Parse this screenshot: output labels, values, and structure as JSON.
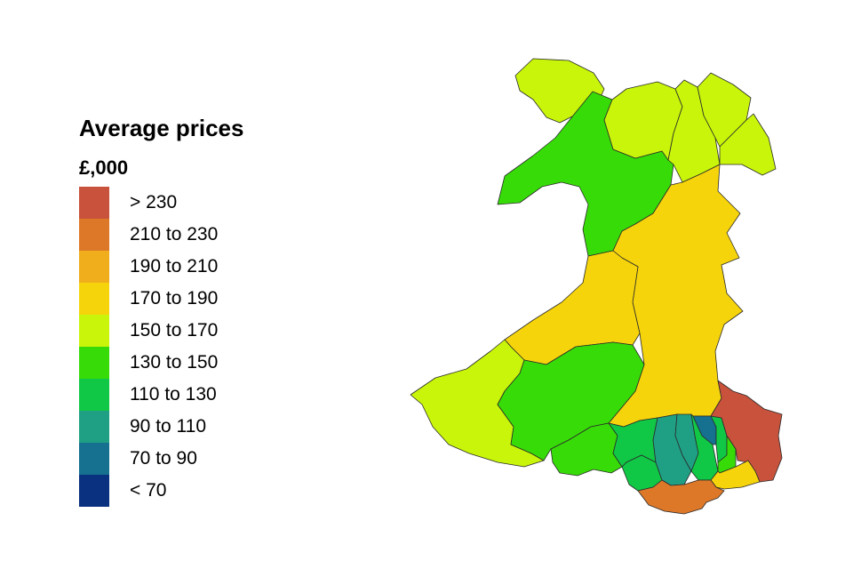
{
  "legend": {
    "title": "Average prices",
    "unit": "£,000",
    "items": [
      {
        "label": "> 230",
        "color": "#c8523c"
      },
      {
        "label": "210 to 230",
        "color": "#dd7829"
      },
      {
        "label": "190 to 210",
        "color": "#f0ad1c"
      },
      {
        "label": "170 to 190",
        "color": "#f6d40b"
      },
      {
        "label": "150 to 170",
        "color": "#c8f50a"
      },
      {
        "label": "130 to 150",
        "color": "#37dc08"
      },
      {
        "label": "110 to 130",
        "color": "#10c846"
      },
      {
        "label": "90 to 110",
        "color": "#1fa085"
      },
      {
        "label": "70 to 90",
        "color": "#167090"
      },
      {
        "label": "< 70",
        "color": "#0a3080"
      }
    ]
  },
  "map": {
    "regions": [
      {
        "name": "anglesey",
        "band": "150 to 170"
      },
      {
        "name": "gwynedd",
        "band": "130 to 150"
      },
      {
        "name": "conwy",
        "band": "150 to 170"
      },
      {
        "name": "denbighshire",
        "band": "150 to 170"
      },
      {
        "name": "flintshire",
        "band": "150 to 170"
      },
      {
        "name": "wrexham",
        "band": "150 to 170"
      },
      {
        "name": "powys",
        "band": "170 to 190"
      },
      {
        "name": "ceredigion",
        "band": "170 to 190"
      },
      {
        "name": "pembrokeshire",
        "band": "150 to 170"
      },
      {
        "name": "carmarthenshire",
        "band": "130 to 150"
      },
      {
        "name": "swansea",
        "band": "130 to 150"
      },
      {
        "name": "neath-port-talbot",
        "band": "110 to 130"
      },
      {
        "name": "bridgend",
        "band": "110 to 130"
      },
      {
        "name": "rhondda-cynon-taf",
        "band": "90 to 110"
      },
      {
        "name": "merthyr-tydfil",
        "band": "90 to 110"
      },
      {
        "name": "caerphilly",
        "band": "110 to 130"
      },
      {
        "name": "blaenau-gwent",
        "band": "70 to 90"
      },
      {
        "name": "torfaen",
        "band": "110 to 130"
      },
      {
        "name": "newport",
        "band": "130 to 150"
      },
      {
        "name": "monmouthshire",
        "band": "> 230"
      },
      {
        "name": "cardiff",
        "band": "170 to 190"
      },
      {
        "name": "vale-of-glamorgan",
        "band": "210 to 230"
      }
    ]
  }
}
